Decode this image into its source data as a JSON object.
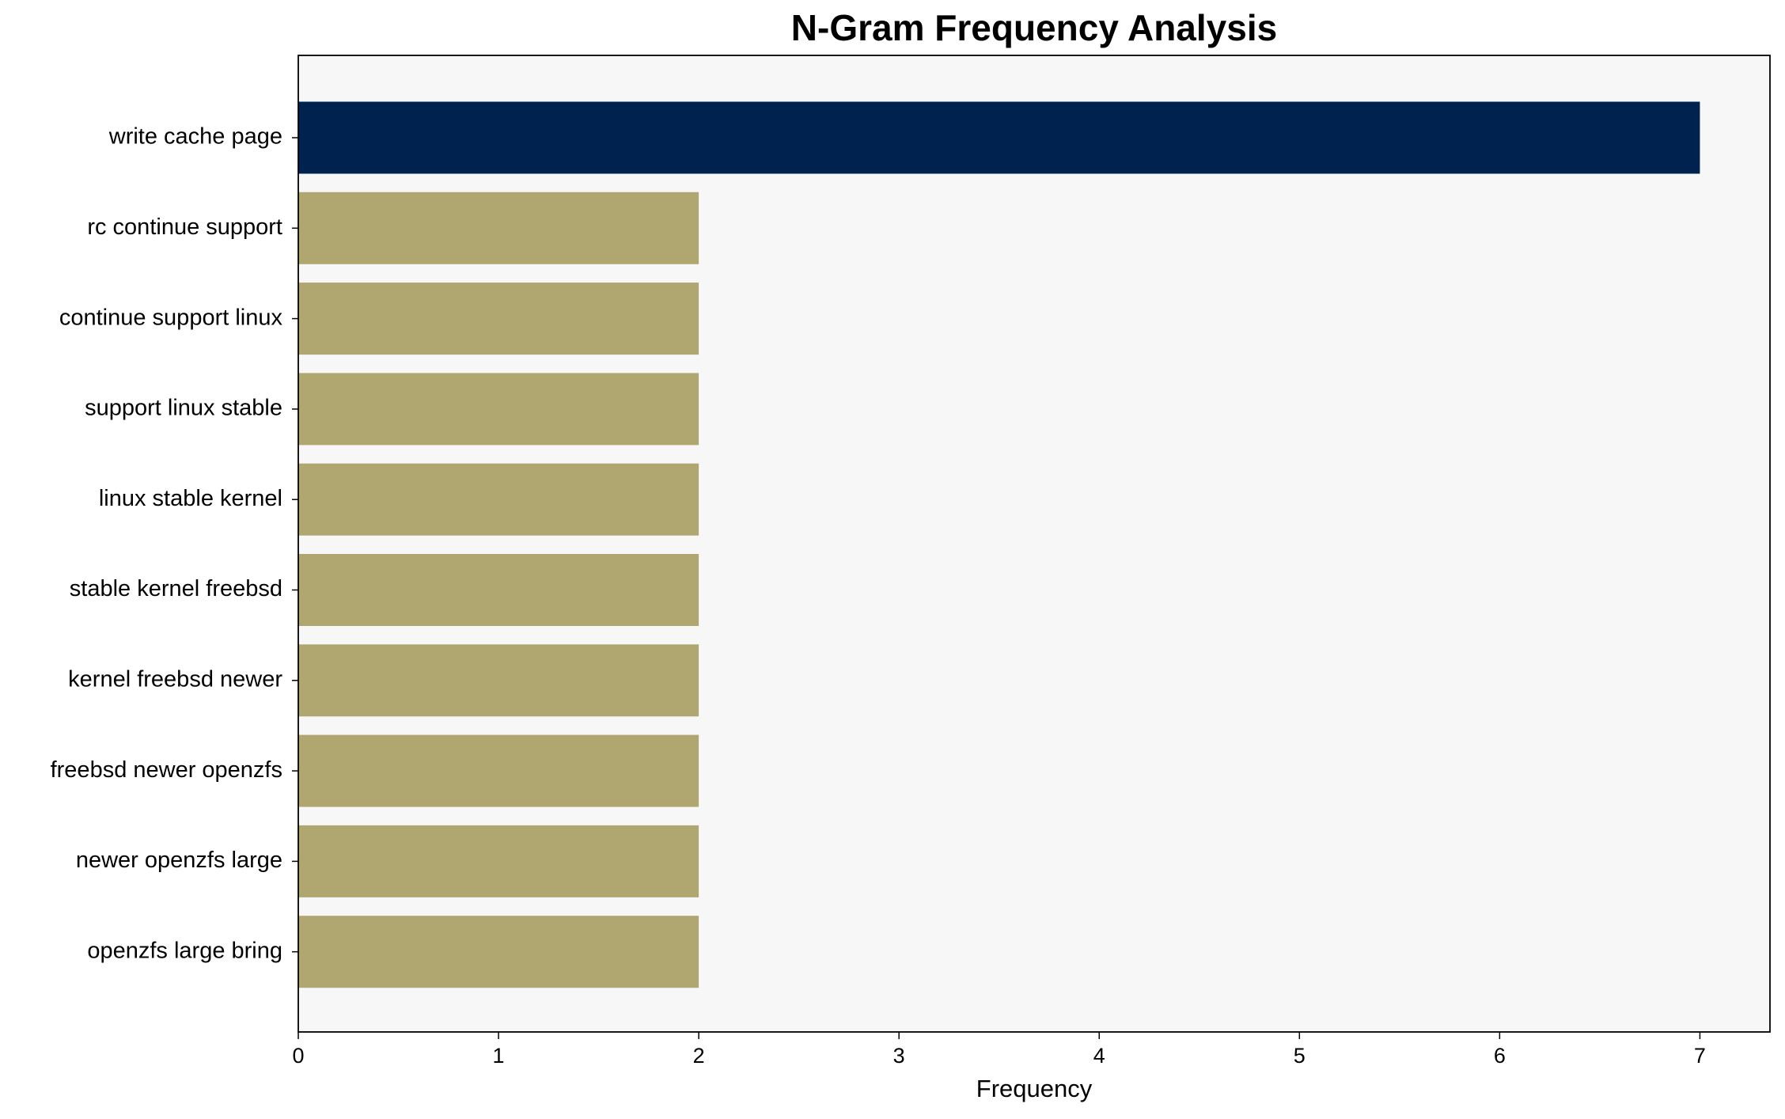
{
  "chart_data": {
    "type": "barh",
    "title": "N-Gram Frequency Analysis",
    "x_label": "Frequency",
    "categories": [
      "write cache page",
      "rc continue support",
      "continue support linux",
      "support linux stable",
      "linux stable kernel",
      "stable kernel freebsd",
      "kernel freebsd newer",
      "freebsd newer openzfs",
      "newer openzfs large",
      "openzfs large bring"
    ],
    "values": [
      7,
      2,
      2,
      2,
      2,
      2,
      2,
      2,
      2,
      2
    ],
    "colors": [
      "#00224e",
      "#b0a670",
      "#b0a670",
      "#b0a670",
      "#b0a670",
      "#b0a670",
      "#b0a670",
      "#b0a670",
      "#b0a670",
      "#b0a670"
    ],
    "xlim": [
      0,
      7.35
    ],
    "xticks": [
      0,
      1,
      2,
      3,
      4,
      5,
      6,
      7
    ],
    "background": "#f7f7f7"
  }
}
